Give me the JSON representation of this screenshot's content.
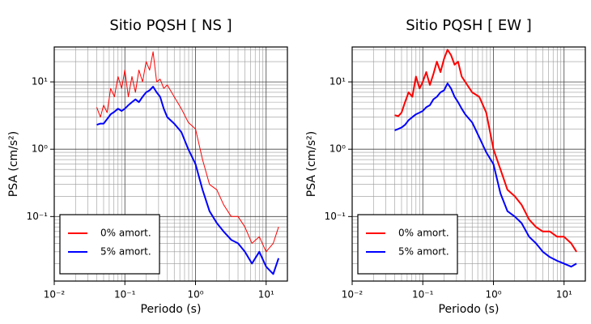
{
  "chart_data": [
    {
      "type": "line",
      "title": "Sitio PQSH [ NS ]",
      "xlabel": "Periodo (s)",
      "ylabel": "PSA (cm/s²)",
      "xscale": "log",
      "yscale": "log",
      "grid": true,
      "legend": "lower left",
      "xlim": [
        0.01,
        20
      ],
      "ylim": [
        0.011,
        33
      ],
      "xticks": [
        {
          "value": 0.01,
          "label": "10⁻²"
        },
        {
          "value": 0.1,
          "label": "10⁻¹"
        },
        {
          "value": 1,
          "label": "10⁰"
        },
        {
          "value": 10,
          "label": "10¹"
        }
      ],
      "yticks": [
        {
          "value": 0.1,
          "label": "10⁻¹"
        },
        {
          "value": 1,
          "label": "10⁰"
        },
        {
          "value": 10,
          "label": "10¹"
        }
      ],
      "xminor": [
        0.02,
        0.03,
        0.04,
        0.05,
        0.06,
        0.07,
        0.08,
        0.09,
        0.2,
        0.3,
        0.4,
        0.5,
        0.6,
        0.7,
        0.8,
        0.9,
        2,
        3,
        4,
        5,
        6,
        7,
        8,
        9
      ],
      "yminor": [
        0.02,
        0.03,
        0.04,
        0.05,
        0.06,
        0.07,
        0.08,
        0.09,
        0.2,
        0.3,
        0.4,
        0.5,
        0.6,
        0.7,
        0.8,
        0.9,
        2,
        3,
        4,
        5,
        6,
        7,
        8,
        9,
        20,
        30
      ],
      "x": [
        0.04,
        0.045,
        0.05,
        0.056,
        0.063,
        0.071,
        0.08,
        0.09,
        0.1,
        0.112,
        0.126,
        0.141,
        0.158,
        0.178,
        0.2,
        0.224,
        0.251,
        0.282,
        0.316,
        0.355,
        0.398,
        0.5,
        0.63,
        0.79,
        1,
        1.26,
        1.58,
        2,
        2.5,
        3.2,
        4,
        5,
        6.3,
        8,
        10,
        12.6,
        15
      ],
      "series": [
        {
          "name": "0% amort.",
          "color": "#ff0000",
          "linewidth": 1,
          "values": [
            4.2,
            3,
            4.5,
            3.5,
            8,
            6,
            12,
            8,
            15,
            6,
            12,
            7,
            15,
            10,
            20,
            15,
            28,
            10,
            11,
            8,
            9,
            6,
            4,
            2.5,
            2,
            0.7,
            0.3,
            0.25,
            0.15,
            0.1,
            0.1,
            0.07,
            0.04,
            0.05,
            0.03,
            0.04,
            0.07
          ]
        },
        {
          "name": "5% amort.",
          "color": "#0000ff",
          "linewidth": 2,
          "values": [
            2.3,
            2.4,
            2.4,
            2.8,
            3.3,
            3.6,
            4,
            3.7,
            4,
            4.5,
            5,
            5.5,
            5,
            6,
            7,
            7.5,
            8.5,
            7,
            6,
            4,
            3,
            2.4,
            1.8,
            1,
            0.6,
            0.25,
            0.12,
            0.08,
            0.06,
            0.045,
            0.04,
            0.03,
            0.02,
            0.03,
            0.018,
            0.014,
            0.024
          ]
        }
      ]
    },
    {
      "type": "line",
      "title": "Sitio PQSH [ EW ]",
      "xlabel": "Periodo (s)",
      "ylabel": "PSA (cm/s²)",
      "xscale": "log",
      "yscale": "log",
      "grid": true,
      "legend": "lower left",
      "xlim": [
        0.01,
        20
      ],
      "ylim": [
        0.011,
        33
      ],
      "xticks": [
        {
          "value": 0.01,
          "label": "10⁻²"
        },
        {
          "value": 0.1,
          "label": "10⁻¹"
        },
        {
          "value": 1,
          "label": "10⁰"
        },
        {
          "value": 10,
          "label": "10¹"
        }
      ],
      "yticks": [
        {
          "value": 0.1,
          "label": "10⁻¹"
        },
        {
          "value": 1,
          "label": "10⁰"
        },
        {
          "value": 10,
          "label": "10¹"
        }
      ],
      "xminor": [
        0.02,
        0.03,
        0.04,
        0.05,
        0.06,
        0.07,
        0.08,
        0.09,
        0.2,
        0.3,
        0.4,
        0.5,
        0.6,
        0.7,
        0.8,
        0.9,
        2,
        3,
        4,
        5,
        6,
        7,
        8,
        9
      ],
      "yminor": [
        0.02,
        0.03,
        0.04,
        0.05,
        0.06,
        0.07,
        0.08,
        0.09,
        0.2,
        0.3,
        0.4,
        0.5,
        0.6,
        0.7,
        0.8,
        0.9,
        2,
        3,
        4,
        5,
        6,
        7,
        8,
        9,
        20,
        30
      ],
      "x": [
        0.04,
        0.045,
        0.05,
        0.056,
        0.063,
        0.071,
        0.08,
        0.09,
        0.1,
        0.112,
        0.126,
        0.141,
        0.158,
        0.178,
        0.2,
        0.224,
        0.251,
        0.282,
        0.316,
        0.355,
        0.398,
        0.5,
        0.63,
        0.79,
        1,
        1.26,
        1.58,
        2,
        2.5,
        3.2,
        4,
        5,
        6.3,
        8,
        10,
        12.6,
        15
      ],
      "series": [
        {
          "name": "0% amort.",
          "color": "#ff0000",
          "linewidth": 2,
          "values": [
            3.2,
            3.1,
            3.5,
            5,
            7,
            6,
            12,
            8,
            10,
            14,
            9,
            13,
            20,
            14,
            22,
            30,
            25,
            18,
            20,
            12,
            10,
            7,
            6,
            3.5,
            1,
            0.5,
            0.25,
            0.2,
            0.15,
            0.09,
            0.07,
            0.06,
            0.06,
            0.05,
            0.05,
            0.04,
            0.03
          ]
        },
        {
          "name": "5% amort.",
          "color": "#0000ff",
          "linewidth": 2,
          "values": [
            1.9,
            2,
            2.1,
            2.3,
            2.7,
            3,
            3.3,
            3.5,
            3.7,
            4.2,
            4.5,
            5.5,
            6,
            7,
            7.5,
            9.5,
            8,
            6,
            5,
            4,
            3.3,
            2.5,
            1.5,
            0.9,
            0.6,
            0.22,
            0.12,
            0.1,
            0.08,
            0.05,
            0.04,
            0.03,
            0.025,
            0.022,
            0.02,
            0.018,
            0.02
          ]
        }
      ]
    }
  ]
}
